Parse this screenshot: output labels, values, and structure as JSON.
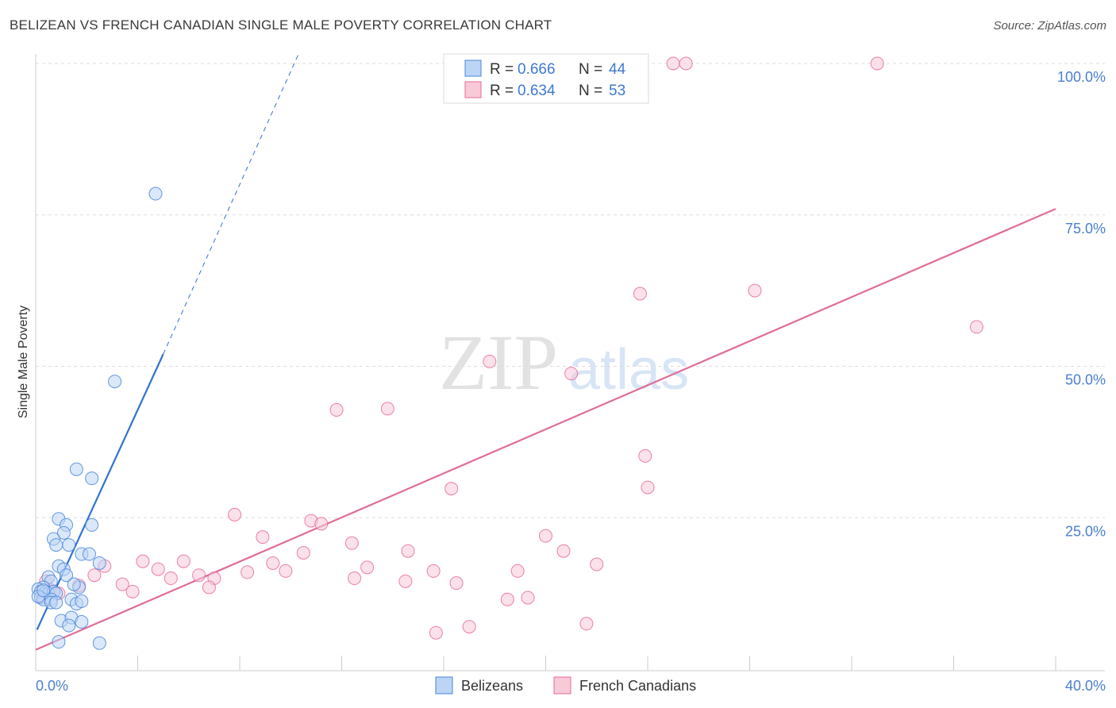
{
  "title": "BELIZEAN VS FRENCH CANADIAN SINGLE MALE POVERTY CORRELATION CHART",
  "source": "Source: ZipAtlas.com",
  "watermark": {
    "zip": "ZIP",
    "atlas": "atlas"
  },
  "colors": {
    "blue": "#4a86d8",
    "blue_fill": "#bcd5f5",
    "pink": "#e56b9a",
    "pink_fill": "#f8c9d7",
    "tick": "#4a7fd0",
    "grid": "#dddddd"
  },
  "legend": {
    "rows": [
      {
        "r_label": "R = ",
        "r_value": "0.666",
        "n_label": "N = ",
        "n_value": "44"
      },
      {
        "r_label": "R = ",
        "r_value": "0.634",
        "n_label": "N = ",
        "n_value": "53"
      }
    ]
  },
  "chart_data": {
    "type": "scatter",
    "title": "BELIZEAN VS FRENCH CANADIAN SINGLE MALE POVERTY CORRELATION CHART",
    "xlabel": "",
    "ylabel": "Single Male Poverty",
    "xlim": [
      0,
      40
    ],
    "ylim": [
      0,
      102
    ],
    "x_tick_labels": [
      "0.0%",
      "40.0%"
    ],
    "y_ticks": [
      25,
      50,
      75,
      100
    ],
    "y_tick_labels": [
      "25.0%",
      "50.0%",
      "75.0%",
      "100.0%"
    ],
    "grid": true,
    "series": [
      {
        "name": "Belizeans",
        "r": 0.666,
        "n": 44,
        "trend": {
          "x0": 0.05,
          "y0": 6.5,
          "x1": 5.0,
          "y1": 52.0,
          "x_dash_end": 10.3,
          "y_dash_end": 101.5
        },
        "points": [
          [
            4.7,
            78.5
          ],
          [
            3.1,
            47.5
          ],
          [
            1.6,
            33.0
          ],
          [
            2.2,
            31.5
          ],
          [
            0.9,
            24.8
          ],
          [
            2.2,
            23.8
          ],
          [
            1.2,
            23.8
          ],
          [
            1.1,
            22.5
          ],
          [
            0.7,
            21.5
          ],
          [
            0.8,
            20.5
          ],
          [
            1.3,
            20.5
          ],
          [
            1.8,
            19.0
          ],
          [
            2.1,
            19.0
          ],
          [
            2.5,
            17.5
          ],
          [
            0.9,
            17.0
          ],
          [
            1.1,
            16.5
          ],
          [
            1.2,
            15.5
          ],
          [
            0.5,
            15.2
          ],
          [
            0.6,
            14.5
          ],
          [
            0.3,
            13.5
          ],
          [
            0.1,
            13.2
          ],
          [
            0.2,
            12.8
          ],
          [
            0.4,
            12.8
          ],
          [
            0.5,
            12.5
          ],
          [
            0.7,
            12.8
          ],
          [
            0.8,
            12.5
          ],
          [
            0.2,
            11.8
          ],
          [
            0.3,
            11.5
          ],
          [
            0.6,
            11.5
          ],
          [
            1.7,
            13.5
          ],
          [
            1.5,
            14.0
          ],
          [
            0.6,
            11.0
          ],
          [
            0.8,
            11.0
          ],
          [
            1.4,
            11.5
          ],
          [
            1.6,
            10.8
          ],
          [
            1.8,
            11.2
          ],
          [
            0.1,
            12.0
          ],
          [
            1.0,
            8.0
          ],
          [
            1.4,
            8.5
          ],
          [
            1.8,
            7.8
          ],
          [
            1.3,
            7.2
          ],
          [
            0.9,
            4.5
          ],
          [
            2.5,
            4.3
          ],
          [
            0.3,
            13.0
          ]
        ]
      },
      {
        "name": "French Canadians",
        "r": 0.634,
        "n": 53,
        "trend": {
          "x0": 0.0,
          "y0": 3.2,
          "x1": 40.0,
          "y1": 76.0
        },
        "points": [
          [
            25.0,
            100.0
          ],
          [
            25.5,
            100.0
          ],
          [
            33.0,
            100.0
          ],
          [
            23.7,
            62.0
          ],
          [
            28.2,
            62.5
          ],
          [
            36.9,
            56.5
          ],
          [
            17.8,
            50.8
          ],
          [
            21.0,
            48.8
          ],
          [
            11.8,
            42.8
          ],
          [
            13.8,
            43.0
          ],
          [
            23.9,
            35.2
          ],
          [
            24.0,
            30.0
          ],
          [
            16.3,
            29.8
          ],
          [
            7.8,
            25.5
          ],
          [
            10.8,
            24.5
          ],
          [
            11.2,
            24.0
          ],
          [
            8.9,
            21.8
          ],
          [
            20.0,
            22.0
          ],
          [
            12.4,
            20.8
          ],
          [
            10.5,
            19.2
          ],
          [
            14.6,
            19.5
          ],
          [
            20.7,
            19.5
          ],
          [
            4.2,
            17.8
          ],
          [
            5.8,
            17.8
          ],
          [
            9.3,
            17.5
          ],
          [
            13.0,
            16.8
          ],
          [
            15.6,
            16.2
          ],
          [
            4.8,
            16.5
          ],
          [
            8.3,
            16.0
          ],
          [
            9.8,
            16.2
          ],
          [
            18.9,
            16.2
          ],
          [
            22.0,
            17.3
          ],
          [
            2.3,
            15.5
          ],
          [
            5.3,
            15.0
          ],
          [
            6.4,
            15.5
          ],
          [
            7.0,
            15.0
          ],
          [
            12.5,
            15.0
          ],
          [
            14.5,
            14.5
          ],
          [
            16.5,
            14.2
          ],
          [
            3.4,
            14.0
          ],
          [
            6.8,
            13.5
          ],
          [
            1.7,
            13.8
          ],
          [
            2.7,
            17.0
          ],
          [
            0.4,
            14.5
          ],
          [
            0.6,
            13.0
          ],
          [
            0.2,
            12.0
          ],
          [
            0.9,
            12.5
          ],
          [
            3.8,
            12.8
          ],
          [
            18.5,
            11.5
          ],
          [
            19.3,
            11.8
          ],
          [
            21.6,
            7.5
          ],
          [
            17.0,
            7.0
          ],
          [
            15.7,
            6.0
          ]
        ]
      }
    ]
  }
}
